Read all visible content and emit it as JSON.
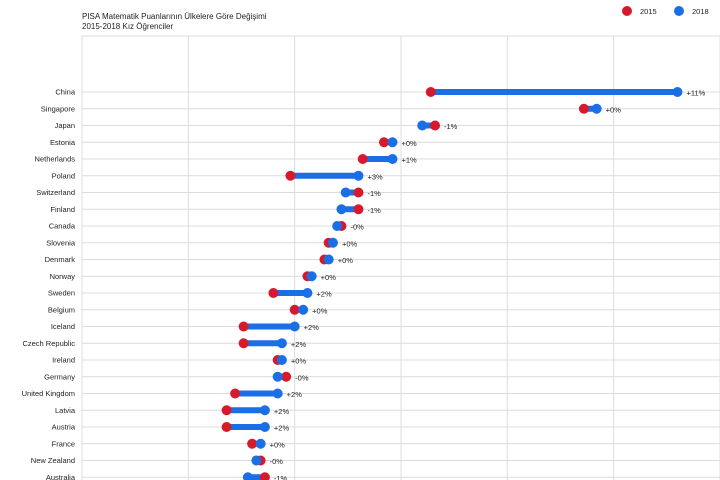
{
  "chart_data": {
    "type": "dumbbell",
    "title": "PISA Matematik Puanlarının Ülkelere Göre Değişimi",
    "subtitle": "2015-2018 Kız Öğrenciler",
    "legend": {
      "position": "top-right",
      "entries": [
        {
          "name": "2015",
          "color": "#d7192c"
        },
        {
          "name": "2018",
          "color": "#1a6fe6"
        }
      ]
    },
    "grid": true,
    "series_colors": {
      "s2015": "#d7192c",
      "s2018": "#1a6fe6"
    },
    "rows": [
      {
        "country": "China",
        "v2015": 532,
        "v2018": 590,
        "label": "+11%"
      },
      {
        "country": "Singapore",
        "v2015": 568,
        "v2018": 571,
        "label": "+0%"
      },
      {
        "country": "Japan",
        "v2015": 533,
        "v2018": 530,
        "label": "-1%"
      },
      {
        "country": "Estonia",
        "v2015": 521,
        "v2018": 523,
        "label": "+0%"
      },
      {
        "country": "Netherlands",
        "v2015": 516,
        "v2018": 523,
        "label": "+1%"
      },
      {
        "country": "Poland",
        "v2015": 499,
        "v2018": 515,
        "label": "+3%"
      },
      {
        "country": "Switzerland",
        "v2015": 515,
        "v2018": 512,
        "label": "-1%"
      },
      {
        "country": "Finland",
        "v2015": 515,
        "v2018": 511,
        "label": "-1%"
      },
      {
        "country": "Canada",
        "v2015": 511,
        "v2018": 510,
        "label": "-0%"
      },
      {
        "country": "Slovenia",
        "v2015": 508,
        "v2018": 509,
        "label": "+0%"
      },
      {
        "country": "Denmark",
        "v2015": 507,
        "v2018": 508,
        "label": "+0%"
      },
      {
        "country": "Norway",
        "v2015": 503,
        "v2018": 504,
        "label": "+0%"
      },
      {
        "country": "Sweden",
        "v2015": 495,
        "v2018": 503,
        "label": "+2%"
      },
      {
        "country": "Belgium",
        "v2015": 500,
        "v2018": 502,
        "label": "+0%"
      },
      {
        "country": "Iceland",
        "v2015": 488,
        "v2018": 500,
        "label": "+2%"
      },
      {
        "country": "Czech Republic",
        "v2015": 488,
        "v2018": 497,
        "label": "+2%"
      },
      {
        "country": "Ireland",
        "v2015": 496,
        "v2018": 497,
        "label": "+0%"
      },
      {
        "country": "Germany",
        "v2015": 498,
        "v2018": 496,
        "label": "-0%"
      },
      {
        "country": "United Kingdom",
        "v2015": 486,
        "v2018": 496,
        "label": "+2%"
      },
      {
        "country": "Latvia",
        "v2015": 484,
        "v2018": 493,
        "label": "+2%"
      },
      {
        "country": "Austria",
        "v2015": 484,
        "v2018": 493,
        "label": "+2%"
      },
      {
        "country": "France",
        "v2015": 490,
        "v2018": 492,
        "label": "+0%"
      },
      {
        "country": "New Zealand",
        "v2015": 492,
        "v2018": 491,
        "label": "-0%"
      },
      {
        "country": "Australia",
        "v2015": 493,
        "v2018": 489,
        "label": "-1%"
      }
    ]
  }
}
